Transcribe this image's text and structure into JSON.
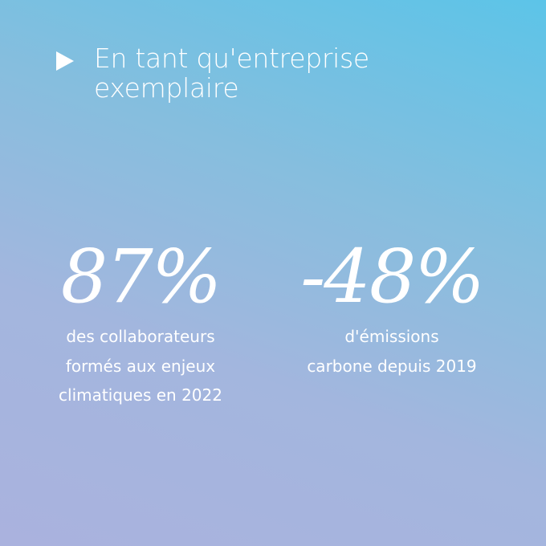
{
  "header": {
    "title_lines": [
      "En tant qu'entreprise",
      "exemplaire"
    ]
  },
  "stats": [
    {
      "figure": "87%",
      "description_lines": [
        "des collaborateurs",
        "formés aux enjeux",
        "climatiques en 2022"
      ]
    },
    {
      "figure": "-48%",
      "description_lines": [
        "d'émissions",
        "carbone depuis 2019"
      ]
    }
  ]
}
